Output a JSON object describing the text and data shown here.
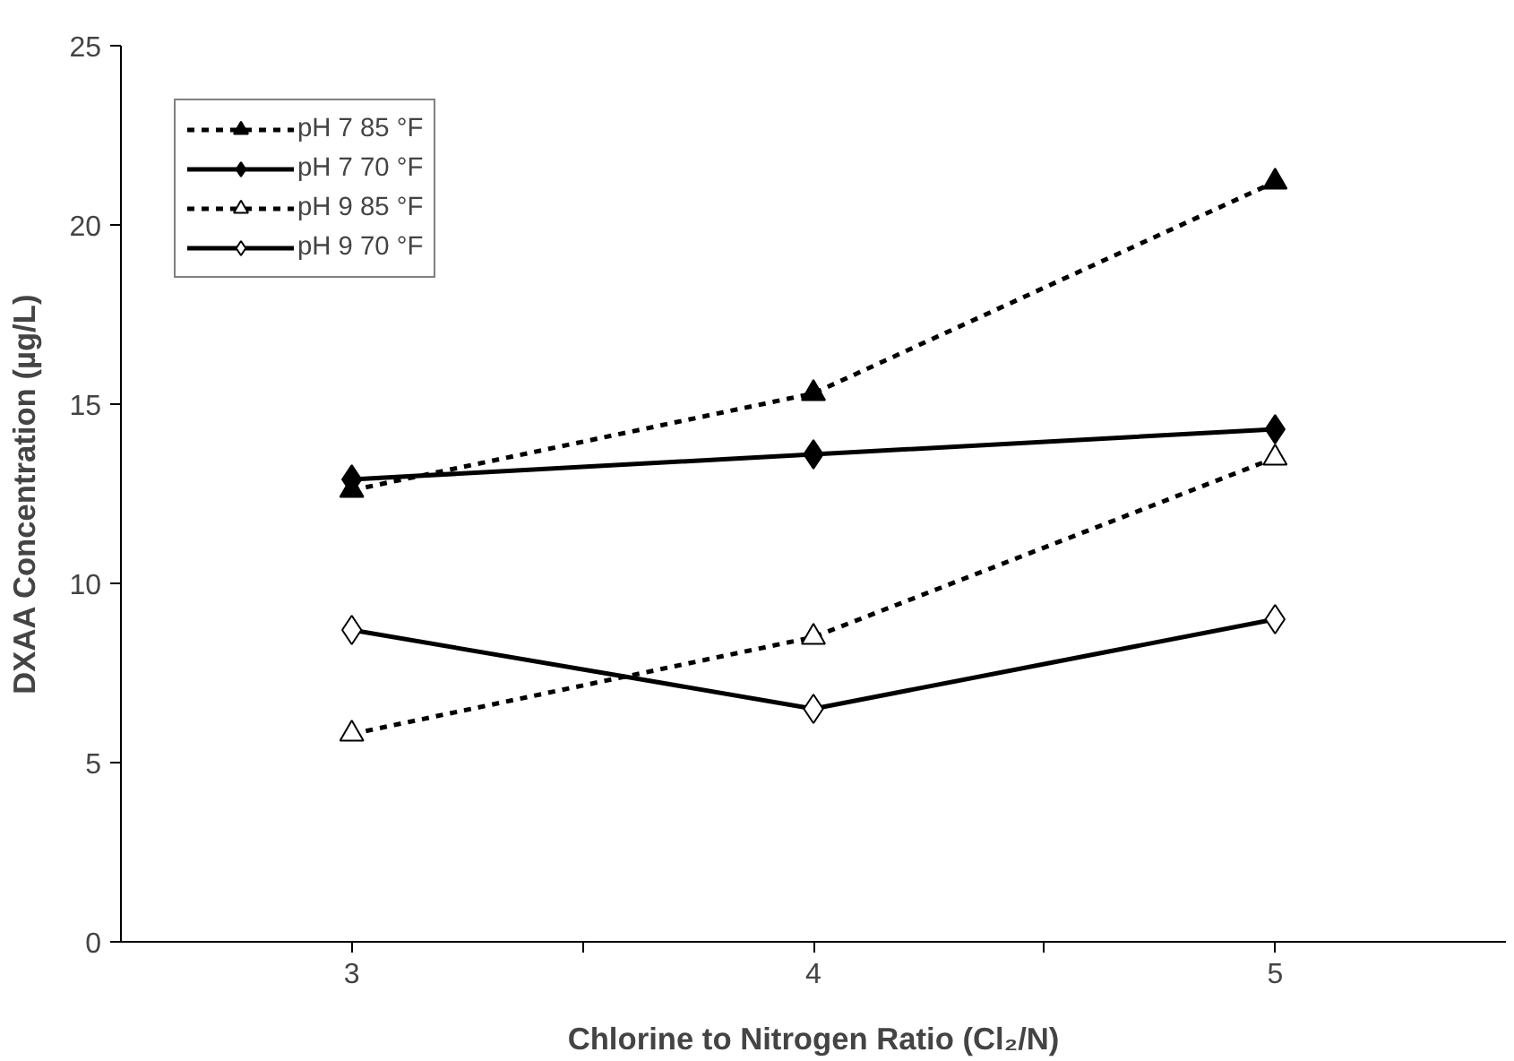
{
  "chart_data": {
    "type": "line",
    "xlabel": "Chlorine to Nitrogen Ratio (Cl₂/N)",
    "ylabel": "DXAA Concentration (µg/L)",
    "x": [
      3,
      4,
      5
    ],
    "xlim": [
      2.5,
      5.5
    ],
    "xticks": [
      3,
      {
        "value": 3.5,
        "label": null
      },
      4,
      {
        "value": 4.5,
        "label": null
      },
      5
    ],
    "ylim": [
      0,
      25
    ],
    "yticks": [
      0,
      5,
      10,
      15,
      20,
      25
    ],
    "grid": false,
    "legend": "top left",
    "series": [
      {
        "name": "pH 7 85 °F",
        "color": "#000000",
        "values": [
          12.6,
          15.3,
          21.2
        ],
        "marker": "triangle",
        "line_style": "dashed"
      },
      {
        "name": "pH 7 70 °F",
        "color": "#000000",
        "values": [
          12.9,
          13.6,
          14.3
        ],
        "marker": "diamond",
        "line_style": "solid"
      },
      {
        "name": "pH 9 85 °F",
        "color": "#000000",
        "values": [
          5.8,
          8.5,
          13.5
        ],
        "marker": "triangle_open",
        "line_style": "dashed"
      },
      {
        "name": "pH 9 70 °F",
        "color": "#000000",
        "values": [
          8.7,
          6.5,
          9.0
        ],
        "marker": "diamond_open",
        "line_style": "solid"
      }
    ]
  }
}
